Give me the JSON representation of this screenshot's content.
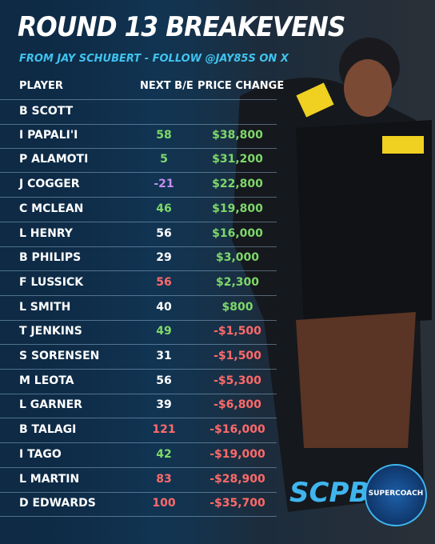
{
  "header": {
    "title": "ROUND 13 BREAKEVENS",
    "subtitle": "FROM JAY SCHUBERT - FOLLOW @JAY85S ON X"
  },
  "table": {
    "columns": [
      "PLAYER",
      "NEXT B/E",
      "PRICE CHANGE"
    ],
    "rows": [
      [
        "B SCOTT",
        null,
        null
      ],
      [
        "I PAPALI'I",
        "58",
        "$38,800"
      ],
      [
        "P ALAMOTI",
        "5",
        "$31,200"
      ],
      [
        "J COGGER",
        "-21",
        "$22,800"
      ],
      [
        "C MCLEAN",
        "46",
        "$19,800"
      ],
      [
        "L HENRY",
        "56",
        "$16,000"
      ],
      [
        "B PHILIPS",
        "29",
        "$3,000"
      ],
      [
        "F LUSSICK",
        "56",
        "$2,300"
      ],
      [
        "L SMITH",
        "40",
        "$800"
      ],
      [
        "T JENKINS",
        "49",
        "-$1,500"
      ],
      [
        "S SORENSEN",
        "31",
        "-$1,500"
      ],
      [
        "M LEOTA",
        "56",
        "-$5,300"
      ],
      [
        "L GARNER",
        "39",
        "-$6,800"
      ],
      [
        "B TALAGI",
        "121",
        "-$16,000"
      ],
      [
        "I TAGO",
        "42",
        "-$19,000"
      ],
      [
        "L MARTIN",
        "83",
        "-$28,900"
      ],
      [
        "D EDWARDS",
        "100",
        "-$35,700"
      ]
    ],
    "be_colors": [
      null,
      "#7ed86a",
      "#7ed86a",
      "#c58cf0",
      "#7ed86a",
      "#ffffff",
      "#ffffff",
      "#ff6a6a",
      "#ffffff",
      "#7ed86a",
      "#ffffff",
      "#ffffff",
      "#ffffff",
      "#ff6a6a",
      "#7ed86a",
      "#ff6a6a",
      "#ff6a6a"
    ],
    "price_colors": [
      null,
      "#7ed86a",
      "#7ed86a",
      "#7ed86a",
      "#7ed86a",
      "#7ed86a",
      "#7ed86a",
      "#7ed86a",
      "#7ed86a",
      "#ff6a6a",
      "#ff6a6a",
      "#ff6a6a",
      "#ff6a6a",
      "#ff6a6a",
      "#ff6a6a",
      "#ff6a6a",
      "#ff6a6a"
    ]
  },
  "logos": {
    "scpb": "SCPB",
    "supercoach": "SUPERCOACH"
  }
}
